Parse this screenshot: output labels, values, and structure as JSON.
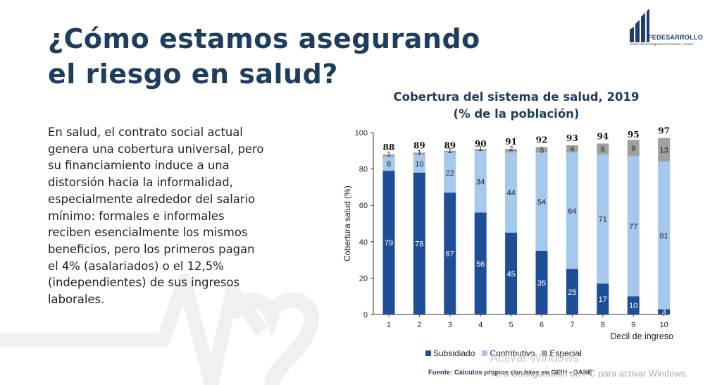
{
  "slide": {
    "title_lines": [
      "¿Cómo estamos asegurando",
      "el riesgo en salud?"
    ],
    "body_lines": [
      "En salud, el contrato social actual",
      "genera una cobertura universal, pero",
      "su financiamiento induce a una",
      "distorsión hacia la informalidad,",
      "especialmente alrededor del salario",
      "mínimo: formales e informales",
      "reciben esencialmente los mismos",
      "beneficios, pero los primeros pagan",
      "el 4% (asalariados) o el 12,5%",
      "(independientes) de sus ingresos",
      "laborales."
    ],
    "source": "Fuente: Cálculos propios con base en GEIH - DANE"
  },
  "logo": {
    "name": "FEDESARROLLO",
    "tagline": "Centro de Investigación Económica y Social",
    "color": "#1f3d6e"
  },
  "watermark": {
    "line1": "Activar Windows",
    "line2": "Ve a Configuración de PC para activar Windows."
  },
  "chart_data": {
    "type": "bar",
    "stacked": true,
    "title_lines": [
      "Cobertura del sistema de salud, 2019",
      "(% de la población)"
    ],
    "xlabel": "Decil de ingreso",
    "ylabel": "Cobertura salud (%)",
    "ylim": [
      0,
      100
    ],
    "yticks": [
      0,
      20,
      40,
      60,
      80,
      100
    ],
    "categories": [
      "1",
      "2",
      "3",
      "4",
      "5",
      "6",
      "7",
      "8",
      "9",
      "10"
    ],
    "totals": [
      88,
      89,
      89,
      90,
      91,
      92,
      93,
      94,
      95,
      97
    ],
    "series": [
      {
        "name": "Subsidiado",
        "color": "#1f4e99",
        "label_color": "#ffffff",
        "values": [
          79,
          78,
          67,
          56,
          45,
          35,
          25,
          17,
          10,
          3
        ]
      },
      {
        "name": "Contributivo",
        "color": "#a5c8ec",
        "label_color": "#222222",
        "values": [
          8,
          10,
          22,
          34,
          44,
          54,
          64,
          71,
          77,
          81
        ]
      },
      {
        "name": "Especial",
        "color": "#a0a0a0",
        "label_color": "#222222",
        "values": [
          1,
          1,
          1,
          1,
          2,
          3,
          4,
          6,
          9,
          13
        ]
      }
    ],
    "legend_position": "bottom",
    "grid": false
  }
}
